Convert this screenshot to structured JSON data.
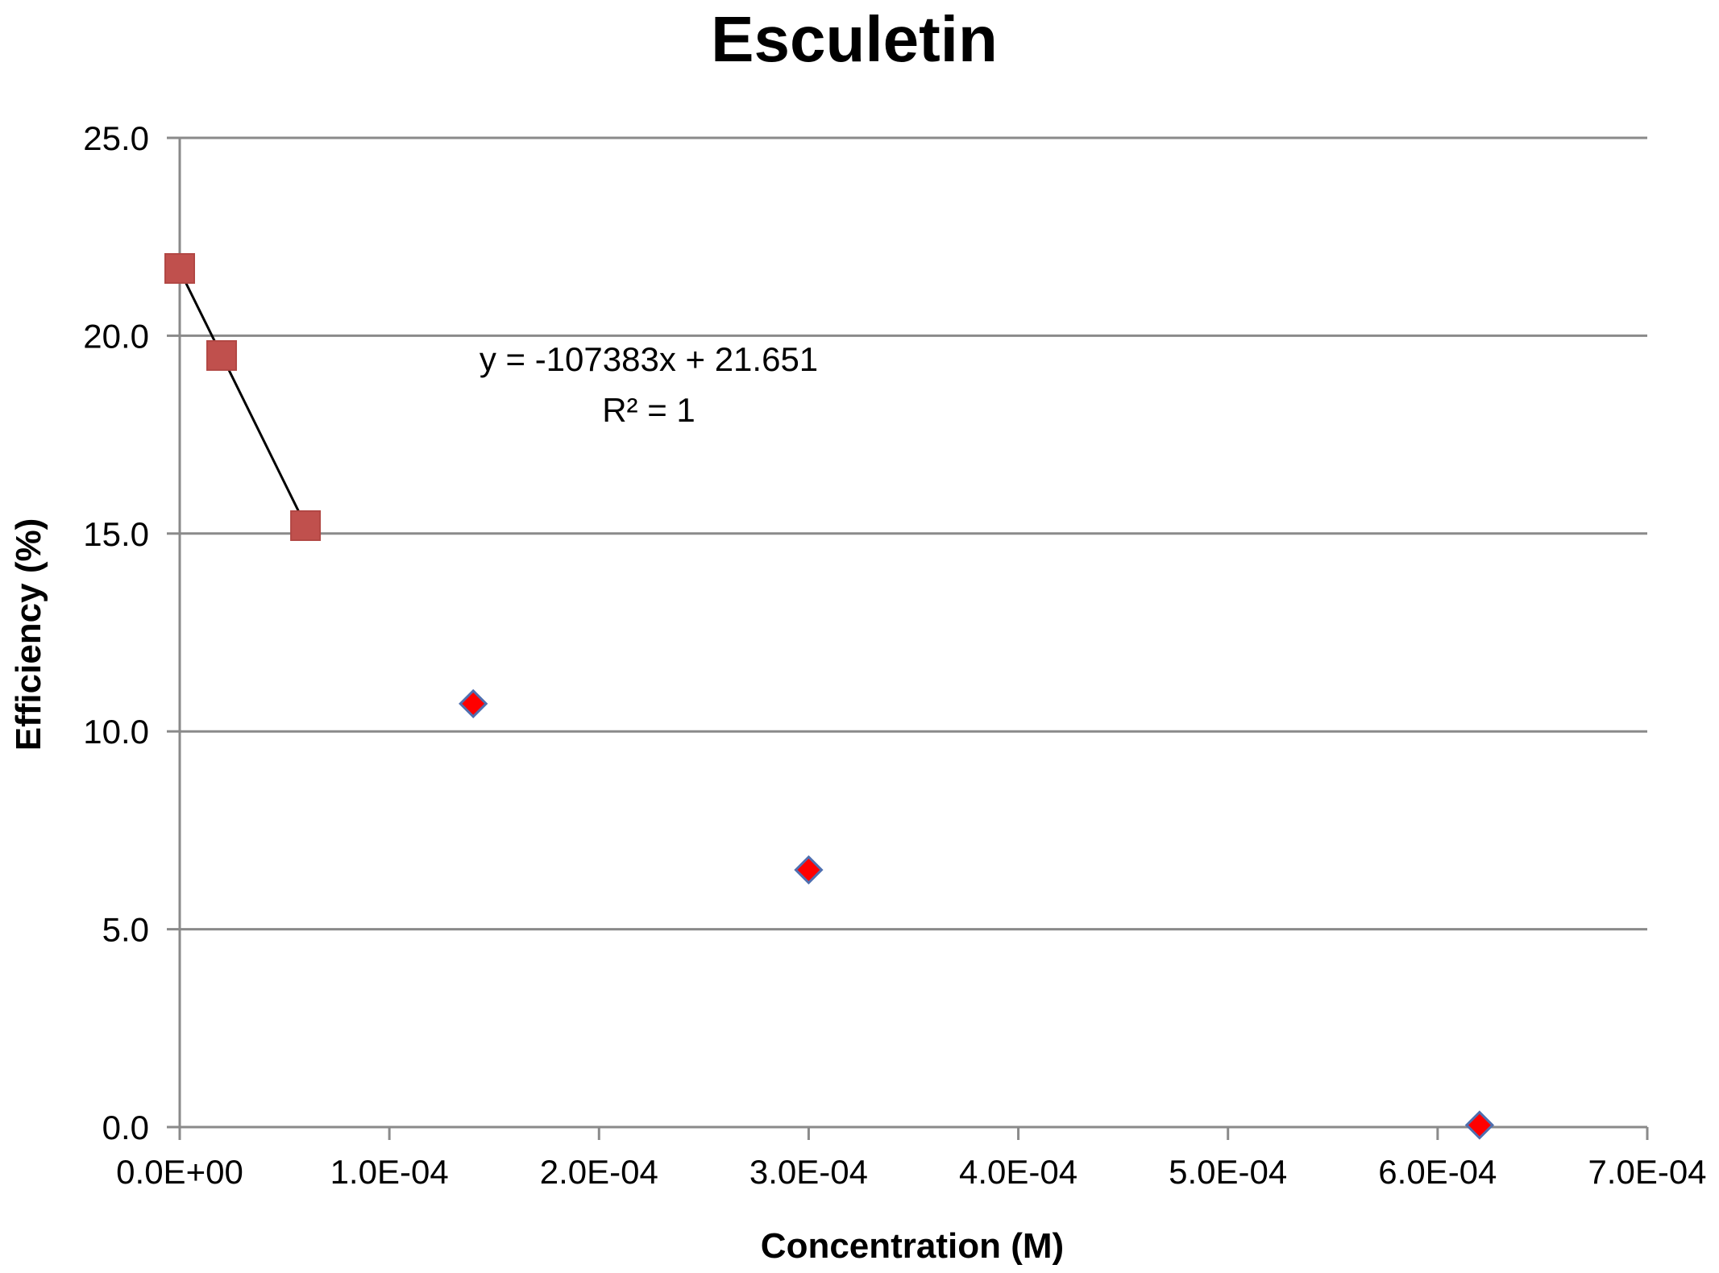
{
  "chart_data": {
    "type": "scatter",
    "title": "Esculetin",
    "xlabel": "Concentration (M)",
    "ylabel": "Efficiency (%)",
    "xlim": [
      0,
      0.0007
    ],
    "ylim": [
      0,
      25
    ],
    "x_ticks": [
      0,
      0.0001,
      0.0002,
      0.0003,
      0.0004,
      0.0005,
      0.0006,
      0.0007
    ],
    "x_tick_labels": [
      "0.0E+00",
      "1.0E-04",
      "2.0E-04",
      "3.0E-04",
      "4.0E-04",
      "5.0E-04",
      "6.0E-04",
      "7.0E-04"
    ],
    "y_ticks": [
      0,
      5,
      10,
      15,
      20,
      25
    ],
    "y_tick_labels": [
      "0.0",
      "5.0",
      "10.0",
      "15.0",
      "20.0",
      "25.0"
    ],
    "grid": true,
    "series": [
      {
        "marker": "square",
        "color": "#c0504d",
        "points": [
          {
            "x": 0.0,
            "y": 21.7
          },
          {
            "x": 2e-05,
            "y": 19.5
          },
          {
            "x": 6e-05,
            "y": 15.2
          }
        ],
        "trendline": {
          "slope": -107383,
          "intercept": 21.651,
          "x_range": [
            0.0,
            6e-05
          ],
          "equation": "y = -107383x + 21.651",
          "r_squared": "R² = 1"
        }
      },
      {
        "marker": "diamond",
        "color": "#ff0000",
        "edge_color": "#4f6fb0",
        "points": [
          {
            "x": 0.00014,
            "y": 10.7
          },
          {
            "x": 0.0003,
            "y": 6.5
          },
          {
            "x": 0.00062,
            "y": 0.05
          }
        ]
      }
    ]
  }
}
